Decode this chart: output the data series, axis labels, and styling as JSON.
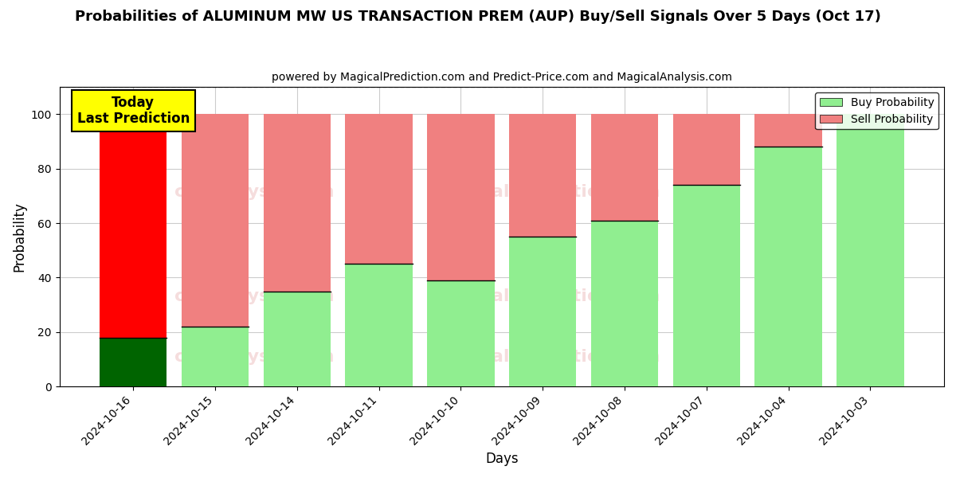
{
  "title": "Probabilities of ALUMINUM MW US TRANSACTION PREM (AUP) Buy/Sell Signals Over 5 Days (Oct 17)",
  "subtitle": "powered by MagicalPrediction.com and Predict-Price.com and MagicalAnalysis.com",
  "xlabel": "Days",
  "ylabel": "Probability",
  "categories": [
    "2024-10-16",
    "2024-10-15",
    "2024-10-14",
    "2024-10-11",
    "2024-10-10",
    "2024-10-09",
    "2024-10-08",
    "2024-10-07",
    "2024-10-04",
    "2024-10-03"
  ],
  "buy_values": [
    18,
    22,
    35,
    45,
    39,
    55,
    61,
    74,
    88,
    100
  ],
  "sell_values": [
    82,
    78,
    65,
    55,
    61,
    45,
    39,
    26,
    12,
    0
  ],
  "buy_color_today": "#006400",
  "sell_color_today": "#ff0000",
  "buy_color_normal": "#90EE90",
  "sell_color_normal": "#F08080",
  "today_label": "Today\nLast Prediction",
  "legend_buy": "Buy Probability",
  "legend_sell": "Sell Probability",
  "ylim": [
    0,
    110
  ],
  "dashed_line_y": 110,
  "background_color": "#ffffff",
  "grid_color": "#cccccc"
}
